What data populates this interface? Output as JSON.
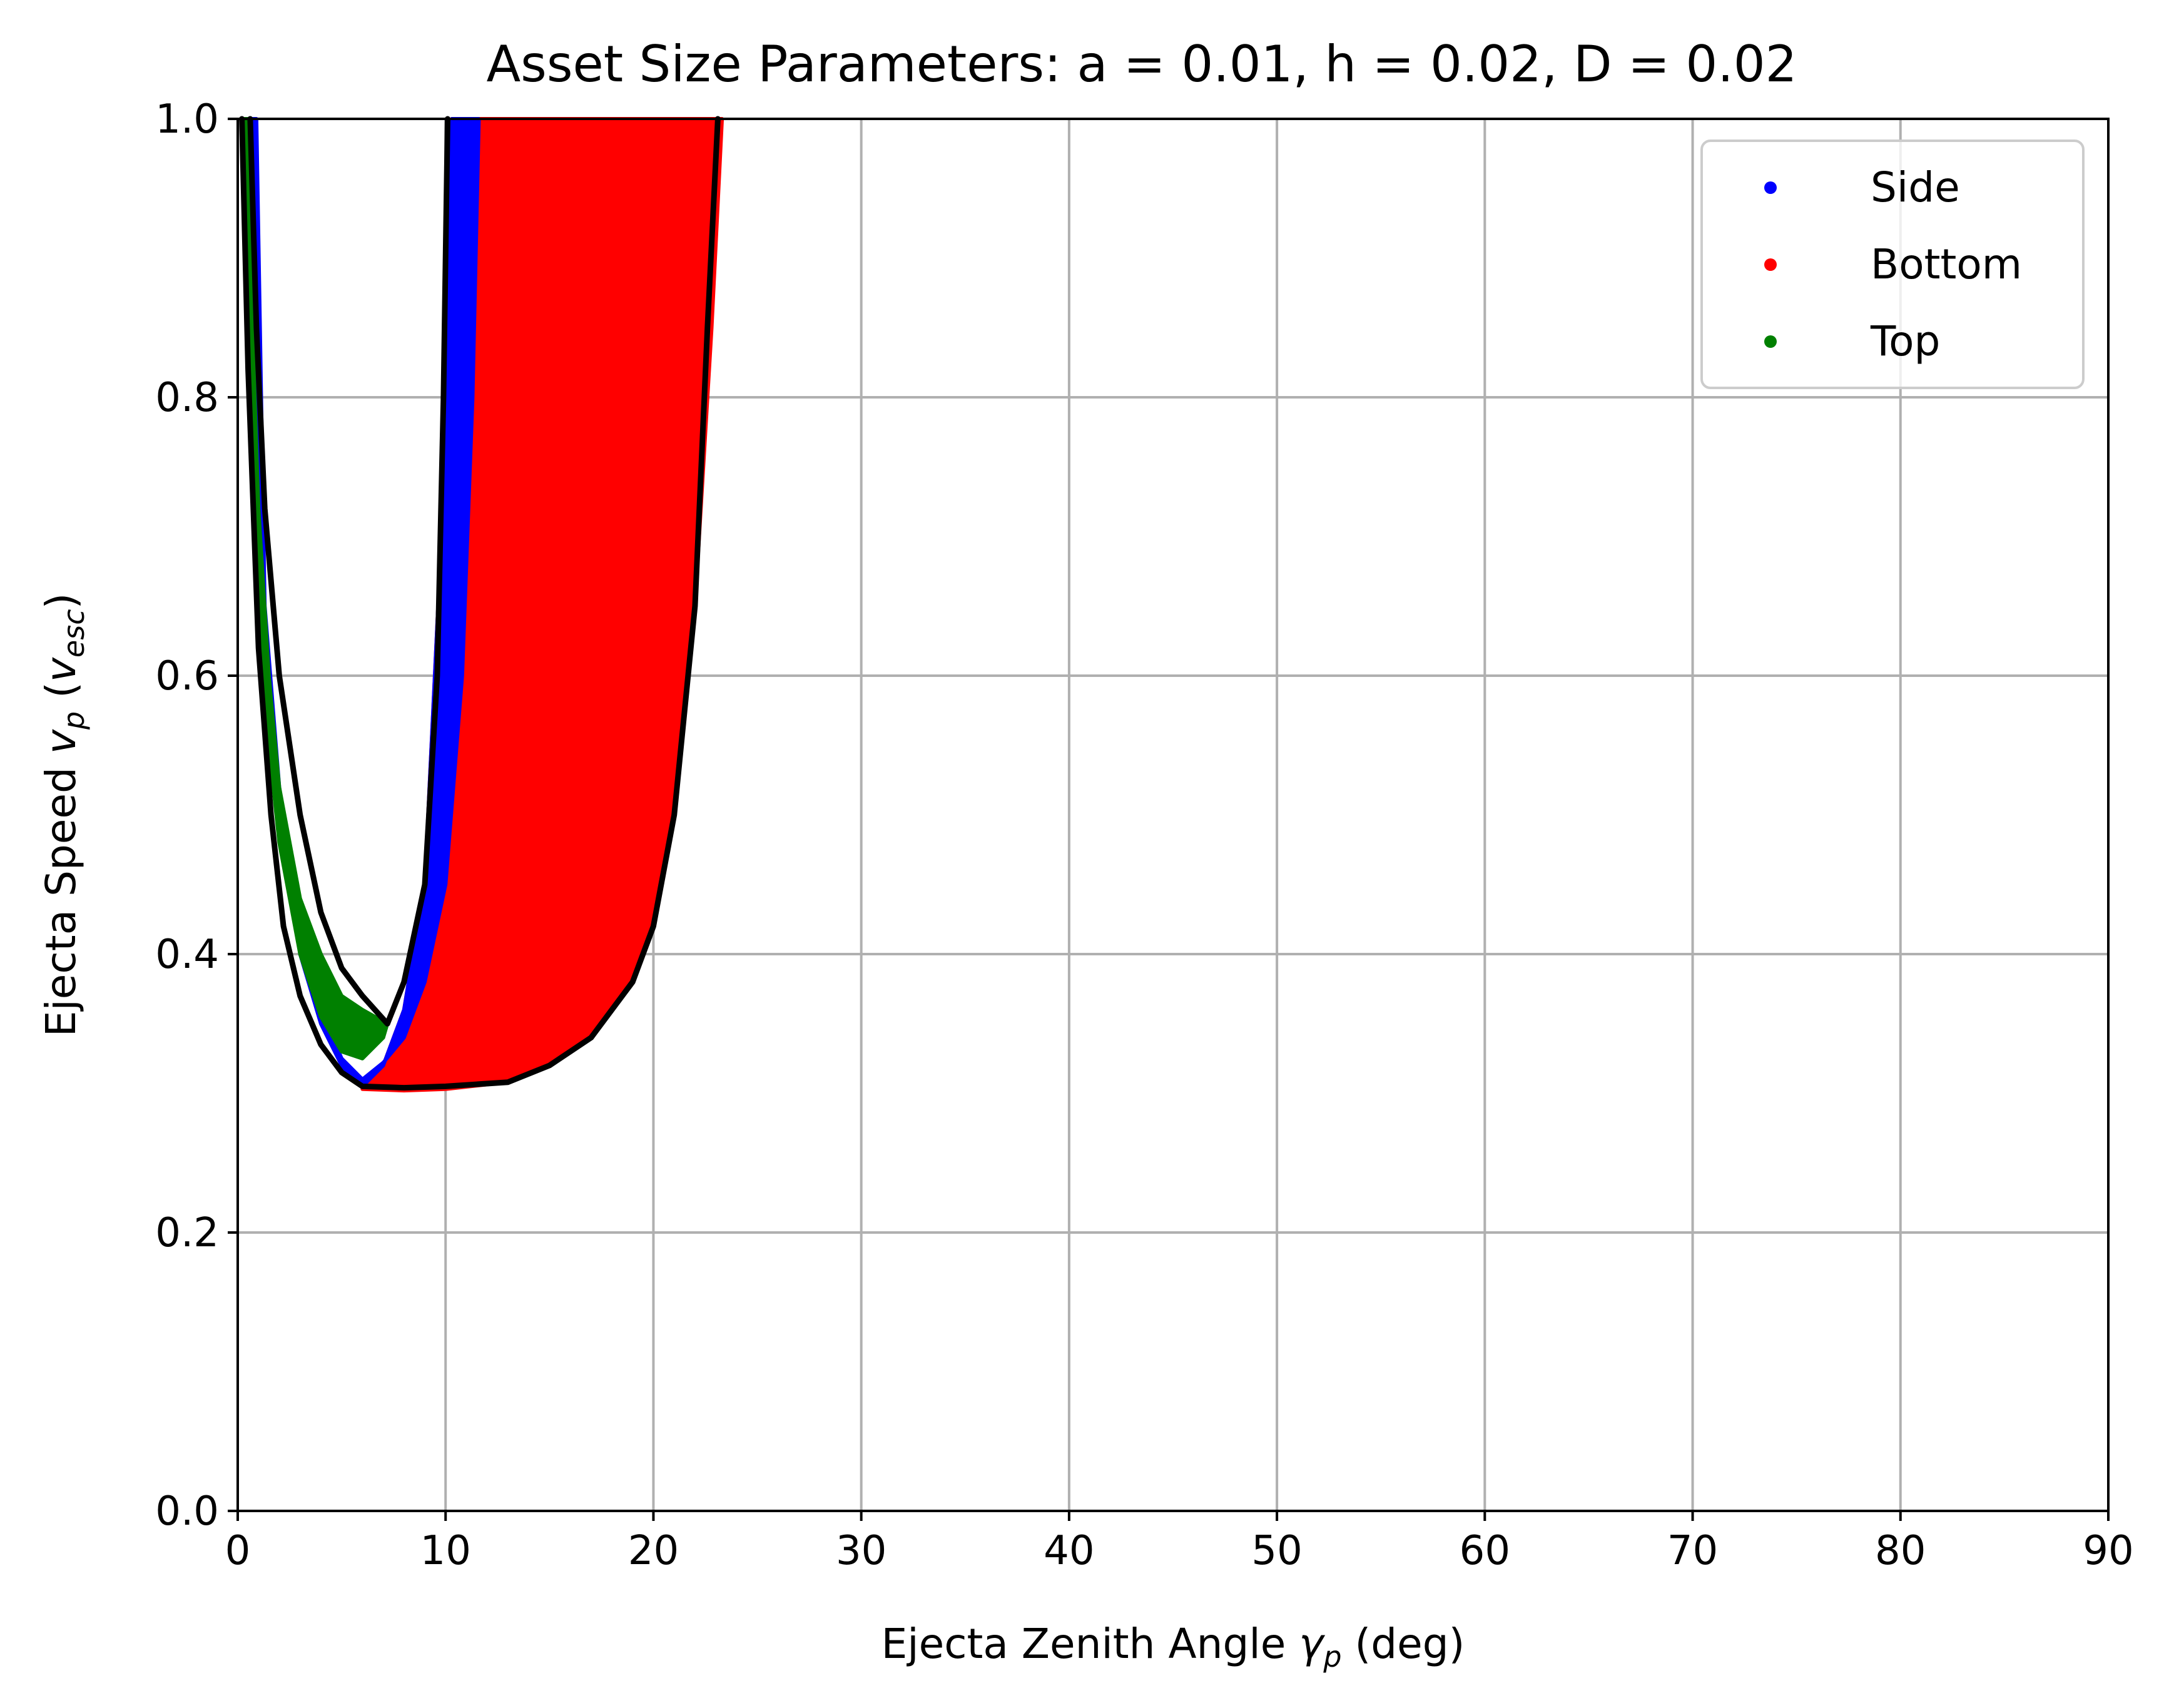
{
  "chart_data": {
    "type": "scatter",
    "title": "Asset Size Parameters: a = 0.01, h = 0.02, D = 0.02",
    "xlabel": {
      "prefix": "Ejecta Zenith Angle ",
      "symbol": "γ",
      "subscript": "p",
      "suffix": " (deg)"
    },
    "ylabel": {
      "prefix": "Ejecta Speed ",
      "symbol": "v",
      "subscript": "p",
      "mid": " (",
      "symbol2": "v",
      "subscript2": "esc",
      "suffix": ")"
    },
    "xlim": [
      0,
      90
    ],
    "ylim": [
      0,
      1.0
    ],
    "xticks": [
      0,
      10,
      20,
      30,
      40,
      50,
      60,
      70,
      80,
      90
    ],
    "yticks": [
      0.0,
      0.2,
      0.4,
      0.6,
      0.8,
      1.0
    ],
    "ytick_labels": [
      "0.0",
      "0.2",
      "0.4",
      "0.6",
      "0.8",
      "1.0"
    ],
    "grid": true,
    "legend_position": "top-right",
    "series": [
      {
        "name": "Side",
        "color": "#0000ff",
        "region": [
          [
            0.3,
            1.0
          ],
          [
            0.6,
            0.85
          ],
          [
            1.2,
            0.65
          ],
          [
            2.0,
            0.5
          ],
          [
            3.0,
            0.4
          ],
          [
            4.0,
            0.35
          ],
          [
            5.0,
            0.32
          ],
          [
            5.5,
            0.31
          ],
          [
            6.0,
            0.305
          ],
          [
            7.0,
            0.32
          ],
          [
            8.0,
            0.36
          ],
          [
            9.0,
            0.45
          ],
          [
            9.8,
            0.7
          ],
          [
            10.3,
            1.0
          ],
          [
            11.6,
            1.0
          ],
          [
            11.3,
            0.8
          ],
          [
            10.8,
            0.6
          ],
          [
            10.0,
            0.45
          ],
          [
            9.0,
            0.38
          ],
          [
            8.0,
            0.34
          ],
          [
            7.0,
            0.322
          ],
          [
            6.0,
            0.31
          ],
          [
            5.0,
            0.325
          ],
          [
            4.0,
            0.36
          ],
          [
            3.0,
            0.42
          ],
          [
            2.0,
            0.52
          ],
          [
            1.3,
            0.65
          ],
          [
            0.9,
            1.0
          ]
        ]
      },
      {
        "name": "Bottom",
        "color": "#ff0000",
        "region": [
          [
            6.0,
            0.303
          ],
          [
            8.0,
            0.302
          ],
          [
            10.0,
            0.303
          ],
          [
            13.0,
            0.308
          ],
          [
            15.0,
            0.32
          ],
          [
            17.0,
            0.34
          ],
          [
            19.0,
            0.38
          ],
          [
            20.0,
            0.42
          ],
          [
            21.0,
            0.5
          ],
          [
            22.0,
            0.65
          ],
          [
            22.8,
            0.85
          ],
          [
            23.3,
            1.0
          ],
          [
            10.3,
            1.0
          ],
          [
            9.8,
            0.7
          ],
          [
            9.0,
            0.45
          ],
          [
            8.0,
            0.36
          ],
          [
            7.0,
            0.32
          ]
        ]
      },
      {
        "name": "Top",
        "color": "#008000",
        "region": [
          [
            0.5,
            1.0
          ],
          [
            0.7,
            0.85
          ],
          [
            1.0,
            0.72
          ],
          [
            1.5,
            0.6
          ],
          [
            2.0,
            0.52
          ],
          [
            3.0,
            0.44
          ],
          [
            4.0,
            0.4
          ],
          [
            5.0,
            0.37
          ],
          [
            6.0,
            0.36
          ],
          [
            7.2,
            0.35
          ],
          [
            7.0,
            0.34
          ],
          [
            6.0,
            0.325
          ],
          [
            5.0,
            0.33
          ],
          [
            4.0,
            0.355
          ],
          [
            3.0,
            0.4
          ],
          [
            2.0,
            0.48
          ],
          [
            1.5,
            0.55
          ],
          [
            1.0,
            0.65
          ],
          [
            0.6,
            0.8
          ],
          [
            0.3,
            1.0
          ]
        ]
      }
    ],
    "boundary_lines": [
      {
        "color": "#000000",
        "points": [
          [
            0.6,
            1.0
          ],
          [
            0.9,
            0.85
          ],
          [
            1.3,
            0.72
          ],
          [
            2.0,
            0.6
          ],
          [
            3.0,
            0.5
          ],
          [
            4.0,
            0.43
          ],
          [
            5.0,
            0.39
          ],
          [
            6.0,
            0.37
          ],
          [
            7.2,
            0.35
          ],
          [
            8.0,
            0.38
          ],
          [
            9.0,
            0.45
          ],
          [
            9.6,
            0.6
          ],
          [
            9.9,
            0.8
          ],
          [
            10.1,
            1.0
          ]
        ]
      },
      {
        "color": "#000000",
        "points": [
          [
            0.2,
            1.0
          ],
          [
            0.5,
            0.82
          ],
          [
            1.0,
            0.62
          ],
          [
            1.6,
            0.5
          ],
          [
            2.2,
            0.42
          ],
          [
            3.0,
            0.37
          ],
          [
            4.0,
            0.335
          ],
          [
            5.0,
            0.315
          ],
          [
            6.0,
            0.305
          ],
          [
            8.0,
            0.304
          ],
          [
            10.0,
            0.305
          ],
          [
            13.0,
            0.308
          ],
          [
            15.0,
            0.32
          ],
          [
            17.0,
            0.34
          ],
          [
            19.0,
            0.38
          ],
          [
            20.0,
            0.42
          ],
          [
            21.0,
            0.5
          ],
          [
            22.0,
            0.65
          ],
          [
            22.6,
            0.85
          ],
          [
            23.1,
            1.0
          ]
        ]
      }
    ]
  }
}
